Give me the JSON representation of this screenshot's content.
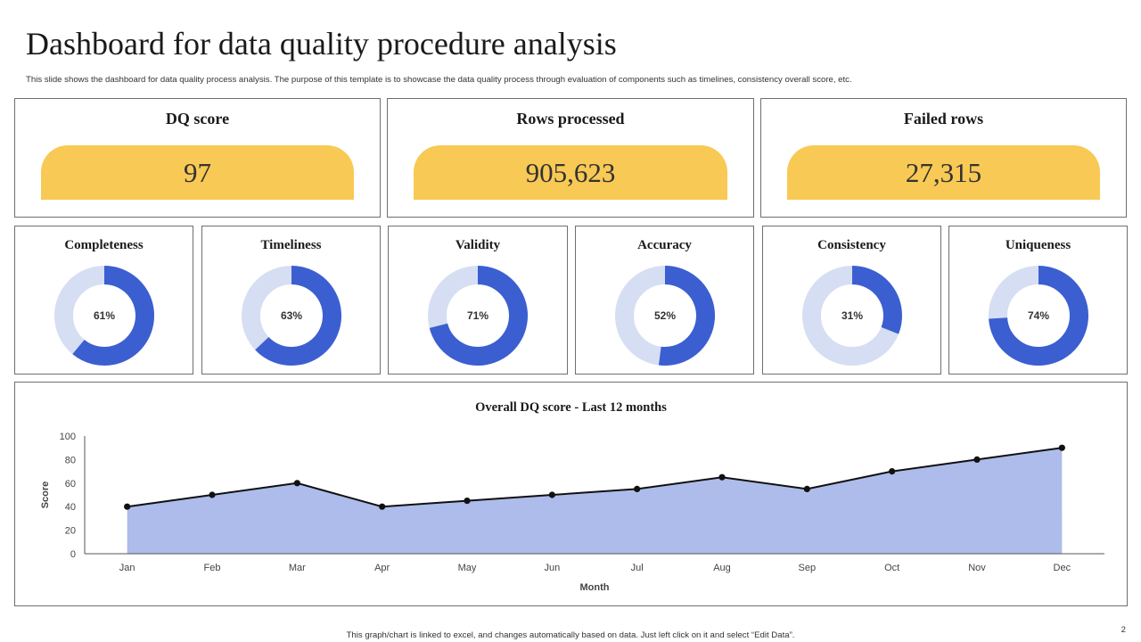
{
  "title": "Dashboard for data quality procedure analysis",
  "subtitle": "This slide shows the dashboard for data quality process analysis. The purpose of this template is to showcase the data quality process through evaluation of components such as timelines,  consistency overall score, etc.",
  "colors": {
    "accent": "#f8c954",
    "primary": "#3b5fd1",
    "primary_light": "#d6def3",
    "area_fill": "#adbcea",
    "border": "#6f6f6f"
  },
  "kpis": [
    {
      "label": "DQ score",
      "value": "97"
    },
    {
      "label": "Rows processed",
      "value": "905,623"
    },
    {
      "label": "Failed rows",
      "value": "27,315"
    }
  ],
  "metrics": [
    {
      "label": "Completeness",
      "percent": 61,
      "display": "61%"
    },
    {
      "label": "Timeliness",
      "percent": 63,
      "display": "63%"
    },
    {
      "label": "Validity",
      "percent": 71,
      "display": "71%"
    },
    {
      "label": "Accuracy",
      "percent": 52,
      "display": "52%"
    },
    {
      "label": "Consistency",
      "percent": 31,
      "display": "31%"
    },
    {
      "label": "Uniqueness",
      "percent": 74,
      "display": "74%"
    }
  ],
  "chart_data": {
    "type": "area",
    "title": "Overall DQ score - Last 12 months",
    "xlabel": "Month",
    "ylabel": "Score",
    "categories": [
      "Jan",
      "Feb",
      "Mar",
      "Apr",
      "May",
      "Jun",
      "Jul",
      "Aug",
      "Sep",
      "Oct",
      "Nov",
      "Dec"
    ],
    "values": [
      40,
      50,
      60,
      40,
      45,
      50,
      55,
      65,
      55,
      70,
      80,
      90
    ],
    "ylim": [
      0,
      100
    ],
    "yticks": [
      0,
      20,
      40,
      60,
      80,
      100
    ],
    "grid": false,
    "markers": true
  },
  "footer": "This graph/chart is linked to excel, and changes automatically based on data. Just left click on it and select “Edit Data”.",
  "page_number": "2"
}
